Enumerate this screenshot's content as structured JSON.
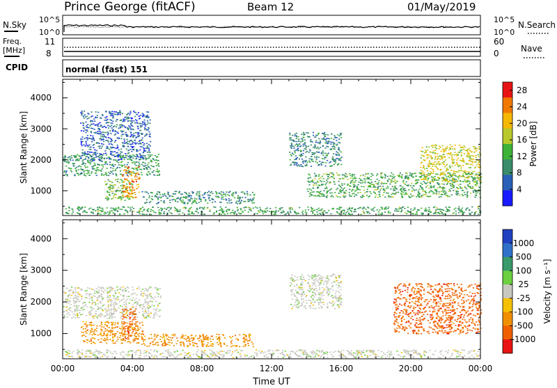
{
  "header": {
    "station": "Prince George (fitACF)",
    "beam": "Beam 12",
    "date": "01/May/2019"
  },
  "noise_panel": {
    "left_label": "N.Sky",
    "left_ticks": [
      "10^5",
      "10^0"
    ],
    "right_label": "N.Search",
    "right_ticks": [
      "10^5",
      "10^0"
    ]
  },
  "freq_panel": {
    "left_label_1": "Freq.",
    "left_label_2": "[MHz]",
    "left_ticks": [
      "11",
      "8"
    ],
    "right_label": "Nave",
    "right_ticks": [
      "60",
      "0"
    ]
  },
  "cpid": {
    "label": "CPID",
    "value": "normal (fast) 151"
  },
  "chart_data": [
    {
      "type": "heatmap",
      "title": "",
      "quantity": "Power",
      "ylabel": "Slant Range [km]",
      "xlabel": "",
      "ylim": [
        200,
        4600
      ],
      "yticks": [
        "1000",
        "2000",
        "3000",
        "4000"
      ],
      "colorbar": {
        "label": "Power [dB]",
        "ticks": [
          "4",
          "8",
          "12",
          "16",
          "20",
          "24",
          "28"
        ],
        "range": [
          0,
          30
        ],
        "colors": [
          "#1a1aff",
          "#2a5fb8",
          "#3a8c6a",
          "#3fb23a",
          "#b8c82a",
          "#f5b800",
          "#f07a00",
          "#e81414"
        ]
      },
      "echo_regions": [
        {
          "t": [
            0.0,
            5.6
          ],
          "r": [
            1500,
            2200
          ],
          "level": 10
        },
        {
          "t": [
            1.0,
            5.0
          ],
          "r": [
            2000,
            3600
          ],
          "level": 5
        },
        {
          "t": [
            2.4,
            4.0
          ],
          "r": [
            700,
            1400
          ],
          "level": 14
        },
        {
          "t": [
            3.4,
            4.4
          ],
          "r": [
            800,
            1800
          ],
          "level": 25
        },
        {
          "t": [
            4.5,
            11.0
          ],
          "r": [
            600,
            1000
          ],
          "level": 9
        },
        {
          "t": [
            13.0,
            16.0
          ],
          "r": [
            1800,
            2900
          ],
          "level": 8
        },
        {
          "t": [
            14.0,
            24.0
          ],
          "r": [
            800,
            1600
          ],
          "level": 12
        },
        {
          "t": [
            20.5,
            24.0
          ],
          "r": [
            1300,
            2500
          ],
          "level": 18
        },
        {
          "t": [
            0.0,
            24.0
          ],
          "r": [
            250,
            500
          ],
          "level": 11
        }
      ]
    },
    {
      "type": "heatmap",
      "title": "",
      "quantity": "Velocity",
      "ylabel": "Slant Range [km]",
      "xlabel": "Time UT",
      "xticks": [
        "00:00",
        "04:00",
        "08:00",
        "12:00",
        "16:00",
        "20:00",
        "00:00"
      ],
      "xlim_hours": [
        0,
        24
      ],
      "ylim": [
        200,
        4600
      ],
      "yticks": [
        "1000",
        "2000",
        "3000",
        "4000"
      ],
      "colorbar": {
        "label": "Velocity [m s⁻¹]",
        "ticks": [
          "1000",
          "500",
          "100",
          "25",
          "-25",
          "-100",
          "-500",
          "-1000"
        ],
        "colors": [
          "#2040c0",
          "#3070c8",
          "#3a9a6a",
          "#6cd040",
          "#c8c8c0",
          "#f5c000",
          "#f09000",
          "#f06000",
          "#e81414"
        ]
      },
      "echo_regions": [
        {
          "t": [
            0.0,
            5.6
          ],
          "r": [
            1500,
            2500
          ],
          "level": "ground"
        },
        {
          "t": [
            1.0,
            4.6
          ],
          "r": [
            700,
            1400
          ],
          "level": "-100"
        },
        {
          "t": [
            3.4,
            4.2
          ],
          "r": [
            800,
            1800
          ],
          "level": "-500"
        },
        {
          "t": [
            4.5,
            11.0
          ],
          "r": [
            600,
            1000
          ],
          "level": "-100"
        },
        {
          "t": [
            13.0,
            16.0
          ],
          "r": [
            1800,
            2900
          ],
          "level": "ground"
        },
        {
          "t": [
            19.0,
            24.0
          ],
          "r": [
            1000,
            2600
          ],
          "level": "-500"
        },
        {
          "t": [
            0.0,
            24.0
          ],
          "r": [
            250,
            500
          ],
          "level": "ground"
        }
      ]
    }
  ]
}
